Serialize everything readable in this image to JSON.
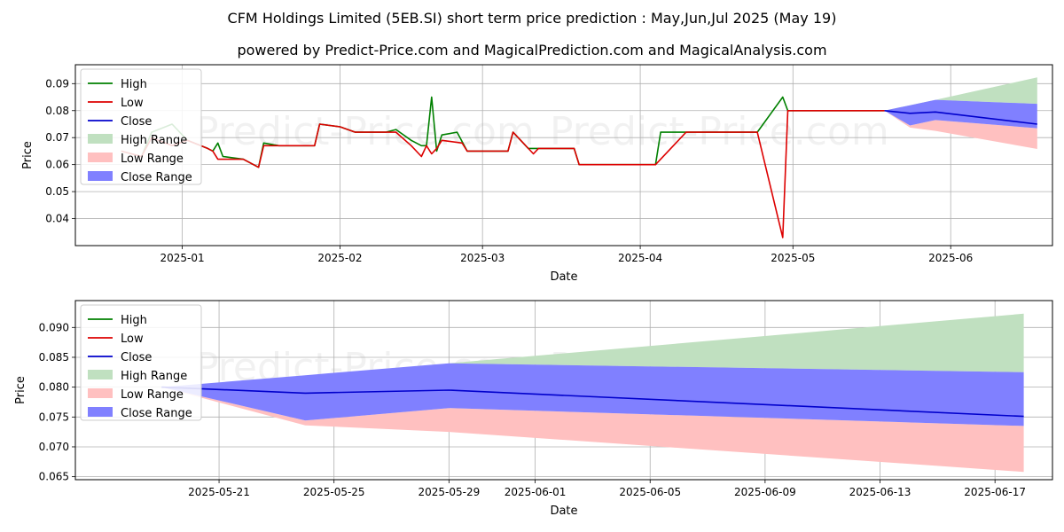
{
  "title_line1": "CFM Holdings Limited (5EB.SI) short term price prediction : May,Jun,Jul 2025 (May 19)",
  "title_line2": "powered by Predict-Price.com and MagicalPrediction.com and MagicalAnalysis.com",
  "watermark": "Predict-Price.com",
  "colors": {
    "high": "#008000",
    "low": "#dd0000",
    "close": "#0000cc",
    "high_range": "#c0e0c0",
    "low_range": "#ffc0c0",
    "close_range": "#8080ff",
    "grid": "#b0b0b0"
  },
  "legend": [
    "High",
    "Low",
    "Close",
    "High Range",
    "Low Range",
    "Close Range"
  ],
  "chart_data": [
    {
      "type": "line",
      "xlabel": "Date",
      "ylabel": "Price",
      "xlim": [
        "2024-12-11",
        "2025-06-21"
      ],
      "ylim": [
        0.03,
        0.097
      ],
      "xticks": [
        "2025-01",
        "2025-02",
        "2025-03",
        "2025-04",
        "2025-05",
        "2025-06"
      ],
      "yticks": [
        0.04,
        0.05,
        0.06,
        0.07,
        0.08,
        0.09
      ],
      "grid": true,
      "legend_position": "top-left",
      "series": [
        {
          "name": "High",
          "points": [
            [
              "2024-12-20",
              0.065
            ],
            [
              "2024-12-24",
              0.063
            ],
            [
              "2024-12-26",
              0.072
            ],
            [
              "2024-12-30",
              0.075
            ],
            [
              "2025-01-02",
              0.069
            ],
            [
              "2025-01-06",
              0.066
            ],
            [
              "2025-01-07",
              0.065
            ],
            [
              "2025-01-08",
              0.068
            ],
            [
              "2025-01-09",
              0.063
            ],
            [
              "2025-01-13",
              0.062
            ],
            [
              "2025-01-16",
              0.059
            ],
            [
              "2025-01-17",
              0.068
            ],
            [
              "2025-01-20",
              0.067
            ],
            [
              "2025-01-27",
              0.067
            ],
            [
              "2025-01-28",
              0.075
            ],
            [
              "2025-02-01",
              0.074
            ],
            [
              "2025-02-04",
              0.072
            ],
            [
              "2025-02-10",
              0.072
            ],
            [
              "2025-02-12",
              0.073
            ],
            [
              "2025-02-15",
              0.069
            ],
            [
              "2025-02-17",
              0.067
            ],
            [
              "2025-02-18",
              0.067
            ],
            [
              "2025-02-19",
              0.085
            ],
            [
              "2025-02-20",
              0.065
            ],
            [
              "2025-02-21",
              0.071
            ],
            [
              "2025-02-24",
              0.072
            ],
            [
              "2025-02-26",
              0.065
            ],
            [
              "2025-03-06",
              0.065
            ],
            [
              "2025-03-07",
              0.072
            ],
            [
              "2025-03-10",
              0.066
            ],
            [
              "2025-03-11",
              0.066
            ],
            [
              "2025-03-19",
              0.066
            ],
            [
              "2025-03-20",
              0.06
            ],
            [
              "2025-04-04",
              0.06
            ],
            [
              "2025-04-05",
              0.072
            ],
            [
              "2025-04-24",
              0.072
            ],
            [
              "2025-04-29",
              0.085
            ],
            [
              "2025-04-30",
              0.08
            ],
            [
              "2025-05-19",
              0.08
            ]
          ]
        },
        {
          "name": "Low",
          "points": [
            [
              "2024-12-20",
              0.065
            ],
            [
              "2024-12-24",
              0.063
            ],
            [
              "2024-12-26",
              0.07
            ],
            [
              "2024-12-30",
              0.067
            ],
            [
              "2025-01-02",
              0.069
            ],
            [
              "2025-01-06",
              0.066
            ],
            [
              "2025-01-07",
              0.065
            ],
            [
              "2025-01-08",
              0.062
            ],
            [
              "2025-01-13",
              0.062
            ],
            [
              "2025-01-16",
              0.059
            ],
            [
              "2025-01-17",
              0.067
            ],
            [
              "2025-01-27",
              0.067
            ],
            [
              "2025-01-28",
              0.075
            ],
            [
              "2025-02-01",
              0.074
            ],
            [
              "2025-02-04",
              0.072
            ],
            [
              "2025-02-12",
              0.072
            ],
            [
              "2025-02-15",
              0.067
            ],
            [
              "2025-02-17",
              0.063
            ],
            [
              "2025-02-18",
              0.067
            ],
            [
              "2025-02-19",
              0.064
            ],
            [
              "2025-02-20",
              0.066
            ],
            [
              "2025-02-21",
              0.069
            ],
            [
              "2025-02-25",
              0.068
            ],
            [
              "2025-02-26",
              0.065
            ],
            [
              "2025-03-06",
              0.065
            ],
            [
              "2025-03-07",
              0.072
            ],
            [
              "2025-03-11",
              0.064
            ],
            [
              "2025-03-12",
              0.066
            ],
            [
              "2025-03-19",
              0.066
            ],
            [
              "2025-03-20",
              0.06
            ],
            [
              "2025-04-04",
              0.06
            ],
            [
              "2025-04-10",
              0.072
            ],
            [
              "2025-04-24",
              0.072
            ],
            [
              "2025-04-29",
              0.033
            ],
            [
              "2025-04-30",
              0.08
            ],
            [
              "2025-05-19",
              0.08
            ]
          ]
        },
        {
          "name": "Close",
          "points": [
            [
              "2025-05-19",
              0.08
            ],
            [
              "2025-05-24",
              0.079
            ],
            [
              "2025-05-29",
              0.0795
            ],
            [
              "2025-06-18",
              0.075
            ]
          ]
        }
      ],
      "ranges": [
        {
          "name": "High Range",
          "x": [
            "2025-05-19",
            "2025-05-24",
            "2025-05-29",
            "2025-06-18"
          ],
          "lower": [
            0.08,
            0.0815,
            0.084,
            0.0825
          ],
          "upper": [
            0.08,
            0.082,
            0.084,
            0.0923
          ]
        },
        {
          "name": "Low Range",
          "x": [
            "2025-05-19",
            "2025-05-24",
            "2025-05-29",
            "2025-06-18"
          ],
          "lower": [
            0.08,
            0.0737,
            0.0725,
            0.0658
          ],
          "upper": [
            0.08,
            0.0745,
            0.0765,
            0.0735
          ]
        },
        {
          "name": "Close Range",
          "x": [
            "2025-05-19",
            "2025-05-24",
            "2025-05-29",
            "2025-06-18"
          ],
          "lower": [
            0.08,
            0.0745,
            0.0765,
            0.0735
          ],
          "upper": [
            0.08,
            0.082,
            0.084,
            0.0825
          ]
        }
      ]
    },
    {
      "type": "line",
      "xlabel": "Date",
      "ylabel": "Price",
      "xlim": [
        "2025-05-16",
        "2025-06-19"
      ],
      "ylim": [
        0.0645,
        0.0945
      ],
      "xticks": [
        "2025-05-21",
        "2025-05-25",
        "2025-05-29",
        "2025-06-01",
        "2025-06-05",
        "2025-06-09",
        "2025-06-13",
        "2025-06-17"
      ],
      "yticks": [
        0.065,
        0.07,
        0.075,
        0.08,
        0.085,
        0.09
      ],
      "grid": true,
      "legend_position": "top-left",
      "series": [
        {
          "name": "Close",
          "points": [
            [
              "2025-05-19",
              0.08
            ],
            [
              "2025-05-24",
              0.079
            ],
            [
              "2025-05-29",
              0.0795
            ],
            [
              "2025-06-18",
              0.0751
            ]
          ]
        }
      ],
      "ranges": [
        {
          "name": "High Range",
          "x": [
            "2025-05-19",
            "2025-05-24",
            "2025-05-29",
            "2025-06-18"
          ],
          "lower": [
            0.08,
            0.082,
            0.084,
            0.0825
          ],
          "upper": [
            0.08,
            0.082,
            0.084,
            0.0923
          ]
        },
        {
          "name": "Low Range",
          "x": [
            "2025-05-19",
            "2025-05-24",
            "2025-05-29",
            "2025-06-18"
          ],
          "lower": [
            0.08,
            0.0736,
            0.0725,
            0.0658
          ],
          "upper": [
            0.08,
            0.0744,
            0.0765,
            0.0735
          ]
        },
        {
          "name": "Close Range",
          "x": [
            "2025-05-19",
            "2025-05-24",
            "2025-05-29",
            "2025-06-18"
          ],
          "lower": [
            0.08,
            0.0744,
            0.0765,
            0.0735
          ],
          "upper": [
            0.08,
            0.082,
            0.084,
            0.0825
          ]
        }
      ]
    }
  ]
}
